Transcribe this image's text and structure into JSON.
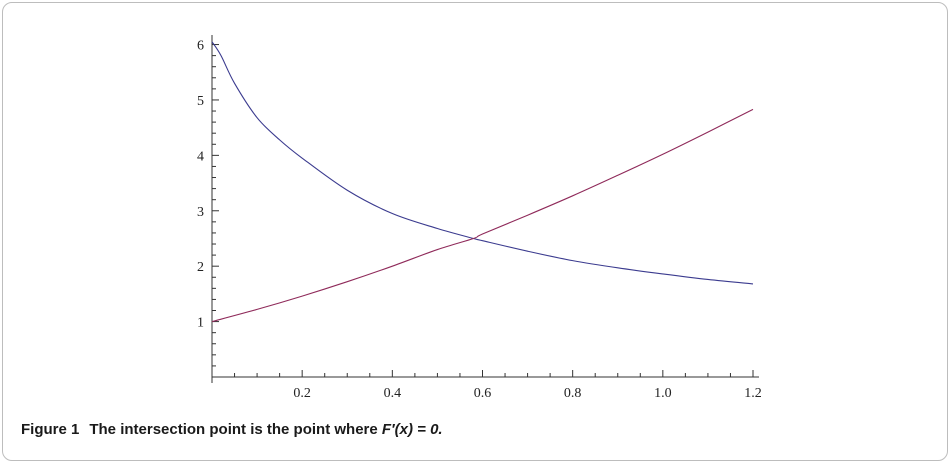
{
  "figure": {
    "label": "Figure 1",
    "caption_text": "The intersection point is the point where ",
    "caption_math": "F′(x) = 0."
  },
  "chart_data": {
    "type": "line",
    "title": "",
    "xlabel": "",
    "ylabel": "",
    "xlim": [
      0,
      1.2
    ],
    "ylim": [
      0,
      6.1
    ],
    "x_ticks": [
      0.2,
      0.4,
      0.6,
      0.8,
      1.0,
      1.2
    ],
    "x_tick_labels": [
      "0.2",
      "0.4",
      "0.6",
      "0.8",
      "1.0",
      "1.2"
    ],
    "y_ticks": [
      1,
      2,
      3,
      4,
      5,
      6
    ],
    "y_tick_labels": [
      "1",
      "2",
      "3",
      "4",
      "5",
      "6"
    ],
    "grid": false,
    "legend": "none",
    "series": [
      {
        "color": "#3b3b8f",
        "x": [
          0.0,
          0.02,
          0.05,
          0.1,
          0.15,
          0.2,
          0.3,
          0.4,
          0.5,
          0.58,
          0.6,
          0.7,
          0.8,
          0.9,
          1.0,
          1.1,
          1.2
        ],
        "y": [
          6.05,
          5.8,
          5.3,
          4.68,
          4.28,
          3.95,
          3.37,
          2.95,
          2.68,
          2.5,
          2.46,
          2.27,
          2.1,
          1.97,
          1.86,
          1.76,
          1.68
        ]
      },
      {
        "color": "#8f2a5a",
        "x": [
          0.0,
          0.1,
          0.2,
          0.3,
          0.4,
          0.5,
          0.58,
          0.6,
          0.7,
          0.8,
          0.9,
          1.0,
          1.1,
          1.2
        ],
        "y": [
          1.0,
          1.22,
          1.46,
          1.72,
          2.0,
          2.3,
          2.5,
          2.58,
          2.92,
          3.27,
          3.64,
          4.02,
          4.42,
          4.83
        ]
      }
    ]
  }
}
